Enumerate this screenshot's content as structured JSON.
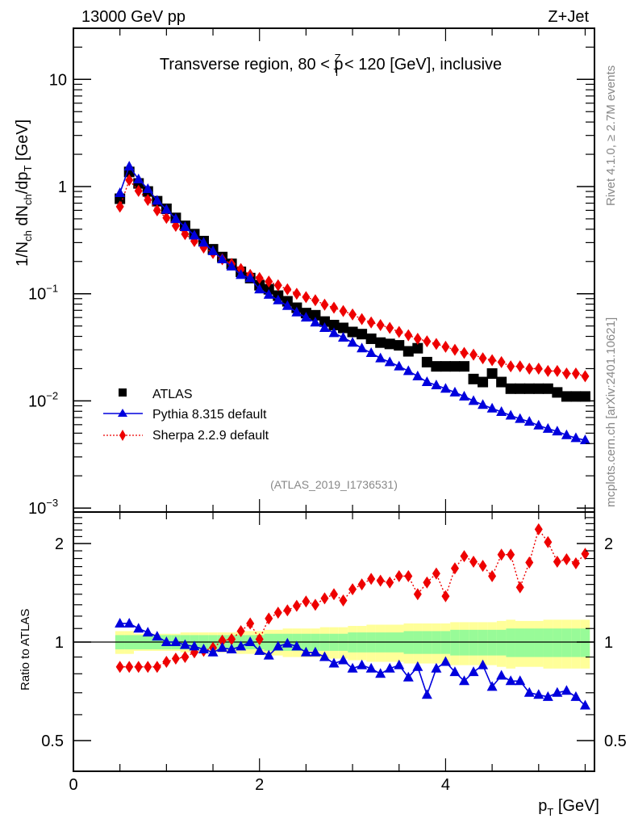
{
  "header": {
    "left": "13000 GeV pp",
    "right": "Z+Jet"
  },
  "side_text": {
    "rivet": "Rivet 4.1.0, ≥ 2.7M events",
    "mcplots": "mcplots.cern.ch [arXiv:2401.10621]"
  },
  "chart_data": [
    {
      "type": "scatter",
      "panel": "main",
      "title": "Transverse region, 80 < p_T^Z < 120 [GeV], inclusive",
      "title_parts": {
        "pre": "Transverse region, 80 < p",
        "sup": "Z",
        "sub": "T",
        "post": " < 120 [GeV], inclusive"
      },
      "xlabel": "p_T [GeV]",
      "ylabel": "1/N_ch dN_ch/dp_T [GeV]",
      "yscale": "log",
      "xlim": [
        0,
        5.6
      ],
      "ylim": [
        0.001,
        30
      ],
      "yticks": [
        {
          "value": 10,
          "label": "10"
        },
        {
          "value": 1,
          "label": "1"
        },
        {
          "value": 0.1,
          "label": "10",
          "exp": "−1"
        },
        {
          "value": 0.01,
          "label": "10",
          "exp": "−2"
        },
        {
          "value": 0.001,
          "label": "10",
          "exp": "−3"
        }
      ],
      "watermark": "(ATLAS_2019_I1736531)",
      "legend_position": "lower-left",
      "x": [
        0.5,
        0.6,
        0.7,
        0.8,
        0.9,
        1.0,
        1.1,
        1.2,
        1.3,
        1.4,
        1.5,
        1.6,
        1.7,
        1.8,
        1.9,
        2.0,
        2.1,
        2.2,
        2.3,
        2.4,
        2.5,
        2.6,
        2.7,
        2.8,
        2.9,
        3.0,
        3.1,
        3.2,
        3.3,
        3.4,
        3.5,
        3.6,
        3.7,
        3.8,
        3.9,
        4.0,
        4.1,
        4.2,
        4.3,
        4.4,
        4.5,
        4.6,
        4.7,
        4.8,
        4.9,
        5.0,
        5.1,
        5.2,
        5.3,
        5.4,
        5.5
      ],
      "series": [
        {
          "name": "ATLAS",
          "marker": "square",
          "color": "#000000",
          "line": "none",
          "values": [
            0.77,
            1.37,
            1.07,
            0.9,
            0.73,
            0.62,
            0.51,
            0.43,
            0.36,
            0.31,
            0.26,
            0.22,
            0.19,
            0.16,
            0.14,
            0.12,
            0.11,
            0.096,
            0.085,
            0.074,
            0.066,
            0.063,
            0.055,
            0.051,
            0.048,
            0.044,
            0.042,
            0.038,
            0.035,
            0.034,
            0.033,
            0.029,
            0.031,
            0.023,
            0.021,
            0.021,
            0.021,
            0.021,
            0.016,
            0.015,
            0.018,
            0.015,
            0.013,
            0.013,
            0.013,
            0.013,
            0.013,
            0.012,
            0.011,
            0.011,
            0.011
          ]
        },
        {
          "name": "Pythia 8.315 default",
          "marker": "triangle",
          "color": "#0000dd",
          "line": "solid",
          "values": [
            0.87,
            1.54,
            1.17,
            0.95,
            0.74,
            0.61,
            0.5,
            0.42,
            0.35,
            0.3,
            0.25,
            0.21,
            0.18,
            0.15,
            0.14,
            0.11,
            0.098,
            0.087,
            0.077,
            0.067,
            0.06,
            0.054,
            0.048,
            0.043,
            0.039,
            0.035,
            0.031,
            0.028,
            0.025,
            0.023,
            0.021,
            0.019,
            0.017,
            0.015,
            0.014,
            0.013,
            0.012,
            0.011,
            0.01,
            0.0092,
            0.0085,
            0.0079,
            0.0073,
            0.0068,
            0.0064,
            0.0059,
            0.0055,
            0.0052,
            0.0048,
            0.0045,
            0.0043
          ]
        },
        {
          "name": "Sherpa 2.2.9 default",
          "marker": "diamond",
          "color": "#ee0000",
          "line": "dotted",
          "values": [
            0.65,
            1.15,
            0.91,
            0.75,
            0.6,
            0.51,
            0.43,
            0.36,
            0.31,
            0.27,
            0.24,
            0.21,
            0.19,
            0.17,
            0.15,
            0.14,
            0.13,
            0.12,
            0.11,
            0.1,
            0.093,
            0.087,
            0.079,
            0.074,
            0.069,
            0.064,
            0.058,
            0.054,
            0.051,
            0.048,
            0.044,
            0.041,
            0.038,
            0.036,
            0.034,
            0.032,
            0.03,
            0.028,
            0.027,
            0.025,
            0.024,
            0.023,
            0.021,
            0.021,
            0.02,
            0.02,
            0.019,
            0.019,
            0.018,
            0.018,
            0.017
          ]
        }
      ]
    },
    {
      "type": "scatter",
      "panel": "ratio",
      "ylabel": "Ratio to ATLAS",
      "yscale": "log",
      "ylim": [
        0.4,
        2.5
      ],
      "yticks": [
        {
          "value": 0.5,
          "label": "0.5"
        },
        {
          "value": 1,
          "label": "1"
        },
        {
          "value": 2,
          "label": "2"
        }
      ],
      "xticks": [
        {
          "value": 0,
          "label": "0"
        },
        {
          "value": 2,
          "label": "2"
        },
        {
          "value": 4,
          "label": "4"
        }
      ],
      "band_stat_frac": [
        0.05,
        0.05,
        0.05,
        0.05,
        0.05,
        0.05,
        0.05,
        0.05,
        0.05,
        0.05,
        0.05,
        0.05,
        0.05,
        0.05,
        0.05,
        0.05,
        0.06,
        0.06,
        0.06,
        0.06,
        0.06,
        0.06,
        0.06,
        0.06,
        0.06,
        0.07,
        0.07,
        0.07,
        0.07,
        0.07,
        0.07,
        0.08,
        0.08,
        0.08,
        0.08,
        0.08,
        0.09,
        0.09,
        0.09,
        0.09,
        0.09,
        0.09,
        0.1,
        0.1,
        0.1,
        0.1,
        0.1,
        0.1,
        0.1,
        0.1,
        0.1
      ],
      "band_total_frac": [
        0.08,
        0.08,
        0.06,
        0.06,
        0.06,
        0.06,
        0.06,
        0.07,
        0.07,
        0.07,
        0.07,
        0.07,
        0.07,
        0.08,
        0.08,
        0.08,
        0.09,
        0.09,
        0.1,
        0.1,
        0.1,
        0.1,
        0.11,
        0.11,
        0.11,
        0.12,
        0.12,
        0.13,
        0.13,
        0.13,
        0.13,
        0.14,
        0.14,
        0.14,
        0.14,
        0.14,
        0.15,
        0.15,
        0.15,
        0.15,
        0.15,
        0.16,
        0.17,
        0.16,
        0.16,
        0.16,
        0.17,
        0.17,
        0.17,
        0.17,
        0.17
      ],
      "series": [
        {
          "name": "Pythia 8.315 default",
          "marker": "triangle",
          "color": "#0000dd",
          "line": "solid",
          "values": [
            1.14,
            1.14,
            1.1,
            1.07,
            1.04,
            1.0,
            1.0,
            0.98,
            0.97,
            0.95,
            0.93,
            0.96,
            0.95,
            0.97,
            1.0,
            0.94,
            0.91,
            0.97,
            0.99,
            0.97,
            0.93,
            0.93,
            0.9,
            0.86,
            0.88,
            0.83,
            0.85,
            0.83,
            0.8,
            0.83,
            0.85,
            0.78,
            0.84,
            0.69,
            0.83,
            0.87,
            0.81,
            0.76,
            0.81,
            0.85,
            0.73,
            0.79,
            0.76,
            0.76,
            0.7,
            0.69,
            0.68,
            0.7,
            0.71,
            0.68,
            0.64
          ]
        },
        {
          "name": "Sherpa 2.2.9 default",
          "marker": "diamond",
          "color": "#ee0000",
          "line": "dotted",
          "values": [
            0.84,
            0.84,
            0.84,
            0.84,
            0.84,
            0.87,
            0.89,
            0.9,
            0.93,
            0.94,
            0.96,
            1.01,
            1.02,
            1.08,
            1.14,
            1.02,
            1.18,
            1.23,
            1.25,
            1.29,
            1.33,
            1.3,
            1.36,
            1.4,
            1.34,
            1.45,
            1.5,
            1.56,
            1.54,
            1.52,
            1.59,
            1.59,
            1.4,
            1.52,
            1.62,
            1.38,
            1.68,
            1.83,
            1.76,
            1.71,
            1.59,
            1.85,
            1.85,
            1.47,
            1.75,
            2.21,
            2.02,
            1.76,
            1.79,
            1.74,
            1.86
          ]
        }
      ]
    }
  ],
  "colors": {
    "band_stat": "#98fb98",
    "band_total": "#ffff99",
    "watermark": "#888888",
    "side_text": "#808080"
  }
}
